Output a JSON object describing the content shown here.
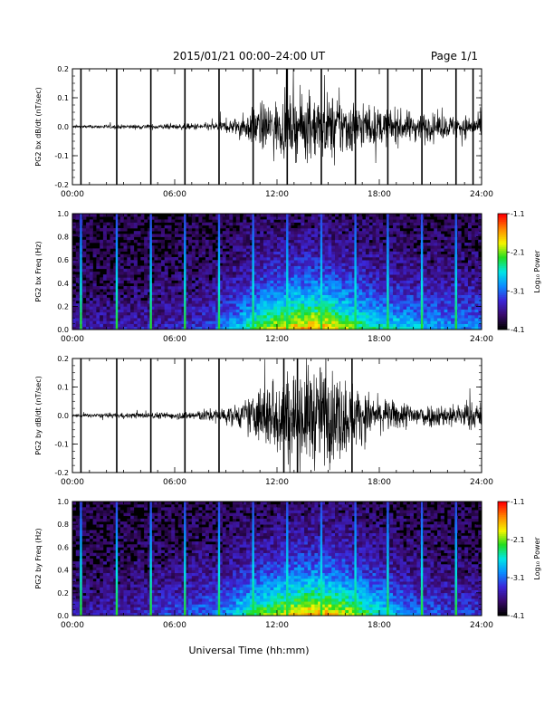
{
  "header": {
    "title": "2015/01/21  00:00–24:00 UT",
    "page": "Page 1/1"
  },
  "footer": {
    "xlabel": "Universal Time (hh:mm)"
  },
  "colors": {
    "trace": "#000000",
    "spec_background": "#000000",
    "colormap": [
      "#000000",
      "#3a0a6e",
      "#3b26d8",
      "#0a8cff",
      "#00e6e6",
      "#22dd22",
      "#f5f500",
      "#ff8800",
      "#ff0000"
    ]
  },
  "chart_data": [
    {
      "id": "bx_waveform",
      "type": "line",
      "ylabel": "PG2 bx dB/dt (nT/sec)",
      "xlim": [
        "00:00",
        "24:00"
      ],
      "xticks": [
        "00:00",
        "06:00",
        "12:00",
        "18:00",
        "24:00"
      ],
      "ylim": [
        -0.2,
        0.2
      ],
      "yticks": [
        "-0.2",
        "-0.1",
        "0.0",
        "0.1",
        "0.2"
      ],
      "x_hours": [
        0,
        1,
        2,
        3,
        4,
        5,
        6,
        7,
        8,
        9,
        10,
        11,
        12,
        13,
        14,
        15,
        16,
        17,
        18,
        19,
        20,
        21,
        22,
        23,
        24
      ],
      "envelope": [
        0.005,
        0.005,
        0.006,
        0.006,
        0.007,
        0.008,
        0.008,
        0.01,
        0.012,
        0.018,
        0.035,
        0.07,
        0.08,
        0.09,
        0.1,
        0.1,
        0.09,
        0.07,
        0.055,
        0.05,
        0.045,
        0.04,
        0.035,
        0.035,
        0.03
      ],
      "spikes_hours": [
        0.5,
        2.6,
        4.6,
        6.6,
        8.6,
        10.6,
        12.6,
        14.6,
        16.6,
        18.5,
        20.5,
        22.5,
        23.5
      ]
    },
    {
      "id": "bx_spectrogram",
      "type": "heatmap",
      "ylabel": "PG2 bx Freq (Hz)",
      "xlim": [
        "00:00",
        "24:00"
      ],
      "xticks": [
        "00:00",
        "06:00",
        "12:00",
        "18:00",
        "24:00"
      ],
      "ylim": [
        0.0,
        1.0
      ],
      "yticks": [
        "0.0",
        "0.2",
        "0.4",
        "0.6",
        "0.8",
        "1.0"
      ],
      "colorbar_label": "Log₁₀ Power",
      "colorbar_ticks": [
        "-1.1",
        "-2.1",
        "-3.1",
        "-4.1"
      ],
      "clim": [
        -4.1,
        -1.1
      ],
      "x_hours": [
        0,
        1,
        2,
        3,
        4,
        5,
        6,
        7,
        8,
        9,
        10,
        11,
        12,
        13,
        14,
        15,
        16,
        17,
        18,
        19,
        20,
        21,
        22,
        23,
        24
      ],
      "activity": [
        0.12,
        0.12,
        0.13,
        0.13,
        0.14,
        0.15,
        0.16,
        0.18,
        0.22,
        0.3,
        0.42,
        0.55,
        0.65,
        0.72,
        0.75,
        0.72,
        0.62,
        0.52,
        0.45,
        0.42,
        0.38,
        0.35,
        0.33,
        0.32,
        0.3
      ],
      "spikes_hours": [
        0.5,
        2.6,
        4.6,
        6.6,
        8.6,
        10.6,
        12.6,
        14.6,
        16.6,
        18.5,
        20.5,
        22.5
      ]
    },
    {
      "id": "by_waveform",
      "type": "line",
      "ylabel": "PG2 by dB/dt (nT/sec)",
      "xlim": [
        "00:00",
        "24:00"
      ],
      "xticks": [
        "00:00",
        "06:00",
        "12:00",
        "18:00",
        "24:00"
      ],
      "ylim": [
        -0.2,
        0.2
      ],
      "yticks": [
        "-0.2",
        "-0.1",
        "0.0",
        "0.1",
        "0.2"
      ],
      "x_hours": [
        0,
        1,
        2,
        3,
        4,
        5,
        6,
        7,
        8,
        9,
        10,
        11,
        12,
        13,
        14,
        15,
        16,
        17,
        18,
        19,
        20,
        21,
        22,
        23,
        24
      ],
      "envelope": [
        0.006,
        0.006,
        0.007,
        0.008,
        0.009,
        0.01,
        0.01,
        0.015,
        0.02,
        0.025,
        0.04,
        0.09,
        0.13,
        0.15,
        0.16,
        0.15,
        0.12,
        0.08,
        0.05,
        0.045,
        0.04,
        0.035,
        0.035,
        0.04,
        0.04
      ],
      "spikes_hours": [
        0.5,
        2.6,
        4.6,
        6.6,
        8.6,
        12.4,
        13.2,
        16.4
      ]
    },
    {
      "id": "by_spectrogram",
      "type": "heatmap",
      "ylabel": "PG2 by Freq (Hz)",
      "xlim": [
        "00:00",
        "24:00"
      ],
      "xticks": [
        "00:00",
        "06:00",
        "12:00",
        "18:00",
        "24:00"
      ],
      "ylim": [
        0.0,
        1.0
      ],
      "yticks": [
        "0.0",
        "0.2",
        "0.4",
        "0.6",
        "0.8",
        "1.0"
      ],
      "colorbar_label": "Log₁₀ Power",
      "colorbar_ticks": [
        "-1.1",
        "-2.1",
        "-3.1",
        "-4.1"
      ],
      "clim": [
        -4.1,
        -1.1
      ],
      "x_hours": [
        0,
        1,
        2,
        3,
        4,
        5,
        6,
        7,
        8,
        9,
        10,
        11,
        12,
        13,
        14,
        15,
        16,
        17,
        18,
        19,
        20,
        21,
        22,
        23,
        24
      ],
      "activity": [
        0.12,
        0.13,
        0.14,
        0.15,
        0.17,
        0.2,
        0.22,
        0.25,
        0.28,
        0.32,
        0.45,
        0.55,
        0.62,
        0.7,
        0.75,
        0.72,
        0.65,
        0.55,
        0.45,
        0.35,
        0.28,
        0.25,
        0.22,
        0.2,
        0.18
      ],
      "spikes_hours": [
        0.5,
        2.6,
        4.6,
        6.6,
        8.6,
        10.6,
        12.6,
        14.6,
        16.6,
        18.5,
        20.5,
        22.5
      ]
    }
  ]
}
